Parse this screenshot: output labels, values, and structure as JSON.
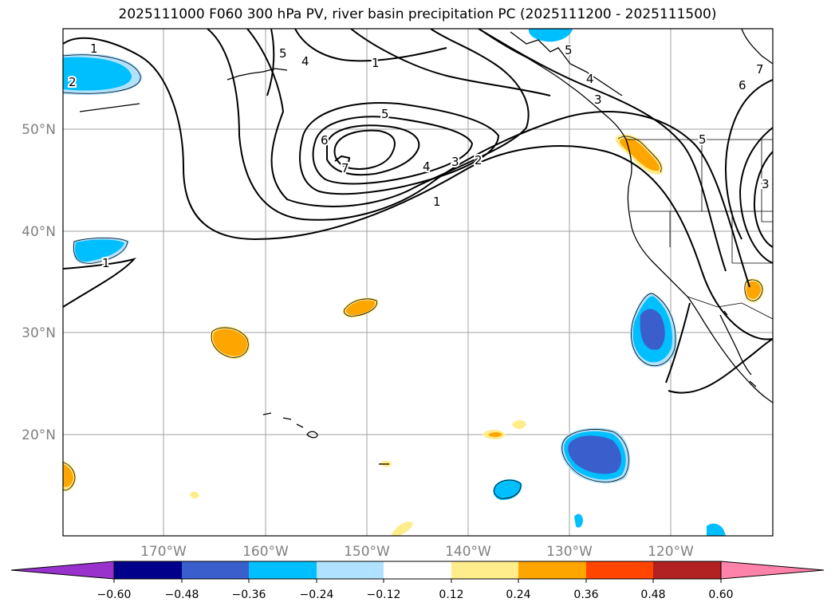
{
  "title": "2025111000 F060 300 hPa PV, river basin precipitation PC (2025111200 - 2025111500)",
  "map": {
    "lat_labels": [
      "50°N",
      "40°N",
      "30°N",
      "20°N"
    ],
    "lon_labels": [
      "170°W",
      "160°W",
      "150°W",
      "140°W",
      "130°W",
      "120°W"
    ],
    "contour_labels": [
      "1",
      "2",
      "3",
      "4",
      "5",
      "6",
      "7"
    ],
    "colors": {
      "grid": "#a0a0a0",
      "coast": "#000000",
      "contour": "#000000"
    }
  },
  "colorbar": {
    "tick_labels": [
      "−0.60",
      "−0.48",
      "−0.36",
      "−0.24",
      "−0.12",
      "0.12",
      "0.24",
      "0.36",
      "0.48",
      "0.60"
    ],
    "colors": [
      "#9932cc",
      "#00008b",
      "#3a5fcd",
      "#00bfff",
      "#b0e2ff",
      "#ffffff",
      "#ffec8b",
      "#ffa500",
      "#ff4500",
      "#b22222",
      "#ff82ab"
    ]
  }
}
